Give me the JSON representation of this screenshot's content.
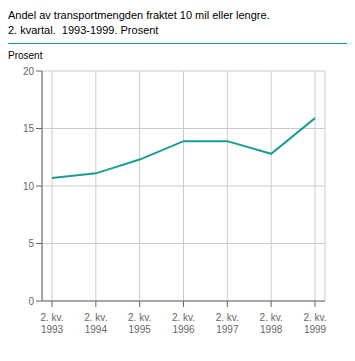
{
  "chart_data": {
    "type": "line",
    "title": "Andel av transportmengden fraktet 10 mil eller lengre.",
    "subtitle": "2. kvartal.  1993-1999. Prosent",
    "y_label": "Prosent",
    "categories": [
      "2. kv.\n1993",
      "2. kv.\n1994",
      "2. kv.\n1995",
      "2. kv.\n1996",
      "2. kv.\n1997",
      "2. kv.\n1998",
      "2. kv.\n1999"
    ],
    "values": [
      10.7,
      11.1,
      12.3,
      13.9,
      13.9,
      12.8,
      15.9
    ],
    "color": "#1a9e96",
    "ylim": [
      0,
      20
    ],
    "yticks": [
      0,
      5,
      10,
      15,
      20
    ],
    "grid": true
  }
}
